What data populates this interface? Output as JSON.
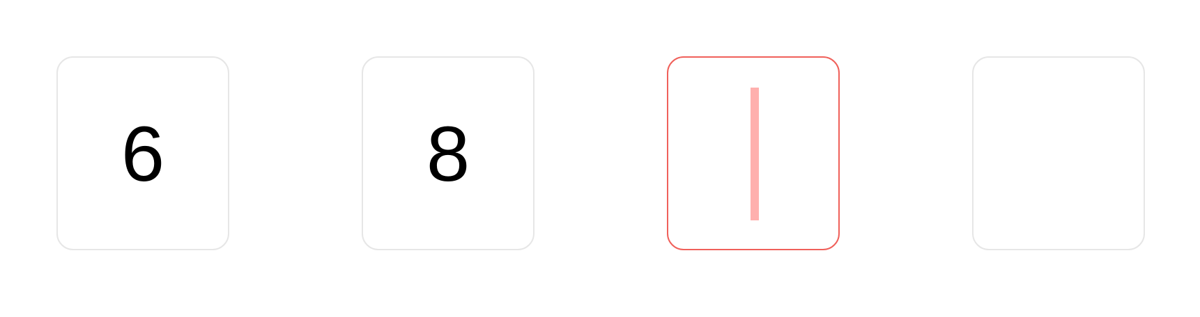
{
  "code_input": {
    "digits": [
      "6",
      "8",
      "",
      ""
    ],
    "active_index": 2,
    "colors": {
      "border": "#e6e6e6",
      "active_border": "#f0605a",
      "caret": "#ffb0ae",
      "text": "#000000"
    }
  }
}
